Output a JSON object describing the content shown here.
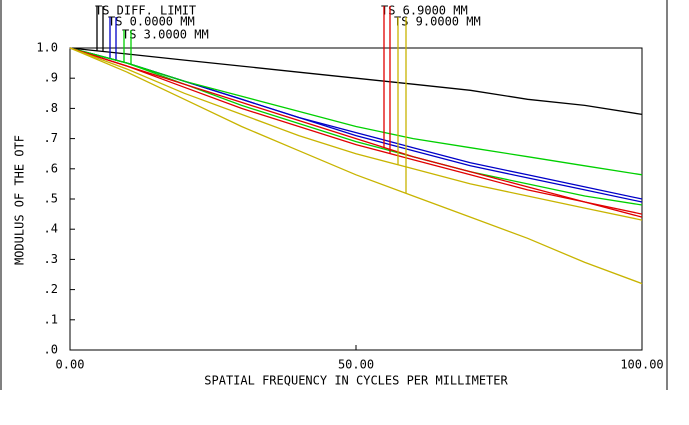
{
  "chart_data": {
    "type": "line",
    "x_label": "SPATIAL FREQUENCY IN CYCLES PER MILLIMETER",
    "y_label": "MODULUS OF THE OTF",
    "x": [
      0,
      10,
      20,
      30,
      40,
      50,
      60,
      70,
      80,
      90,
      100
    ],
    "xlim": [
      0,
      100
    ],
    "ylim": [
      0,
      1
    ],
    "xticks": [
      {
        "value": 0,
        "label": "0.00"
      },
      {
        "value": 50,
        "label": "50.00"
      },
      {
        "value": 100,
        "label": "100.00"
      }
    ],
    "yticks": [
      {
        "value": 0,
        "label": ".0"
      },
      {
        "value": 0.1,
        "label": ".1"
      },
      {
        "value": 0.2,
        "label": ".2"
      },
      {
        "value": 0.3,
        "label": ".3"
      },
      {
        "value": 0.4,
        "label": ".4"
      },
      {
        "value": 0.5,
        "label": ".5"
      },
      {
        "value": 0.6,
        "label": ".6"
      },
      {
        "value": 0.7,
        "label": ".7"
      },
      {
        "value": 0.8,
        "label": ".8"
      },
      {
        "value": 0.9,
        "label": ".9"
      },
      {
        "value": 1,
        "label": "1.0"
      }
    ],
    "grid": false,
    "series": [
      {
        "name": "TS DIFF. LIMIT",
        "color": "#000000",
        "values": [
          1,
          0.98,
          0.96,
          0.94,
          0.92,
          0.9,
          0.88,
          0.86,
          0.83,
          0.81,
          0.78
        ]
      },
      {
        "name": "TS 0.0000 MM",
        "color": "#0000c8",
        "values": [
          1,
          0.95,
          0.89,
          0.83,
          0.77,
          0.72,
          0.67,
          0.62,
          0.58,
          0.54,
          0.5
        ],
        "sagittal": [
          1,
          0.95,
          0.89,
          0.83,
          0.77,
          0.71,
          0.66,
          0.61,
          0.57,
          0.53,
          0.49
        ]
      },
      {
        "name": "TS 3.0000 MM",
        "color": "#00d000",
        "values": [
          1,
          0.95,
          0.89,
          0.84,
          0.79,
          0.74,
          0.7,
          0.67,
          0.64,
          0.61,
          0.58
        ],
        "sagittal": [
          1,
          0.95,
          0.88,
          0.81,
          0.75,
          0.69,
          0.64,
          0.59,
          0.55,
          0.51,
          0.48
        ]
      },
      {
        "name": "TS 6.9000 MM",
        "color": "#e00000",
        "values": [
          1,
          0.94,
          0.88,
          0.82,
          0.76,
          0.7,
          0.64,
          0.59,
          0.54,
          0.49,
          0.45
        ],
        "sagittal": [
          1,
          0.94,
          0.87,
          0.8,
          0.74,
          0.68,
          0.63,
          0.58,
          0.53,
          0.49,
          0.44
        ]
      },
      {
        "name": "TS 9.0000 MM",
        "color": "#c8b400",
        "values": [
          1,
          0.93,
          0.85,
          0.78,
          0.71,
          0.65,
          0.6,
          0.55,
          0.51,
          0.47,
          0.43
        ],
        "sagittal": [
          1,
          0.92,
          0.83,
          0.74,
          0.66,
          0.58,
          0.51,
          0.44,
          0.37,
          0.29,
          0.22
        ]
      }
    ]
  }
}
